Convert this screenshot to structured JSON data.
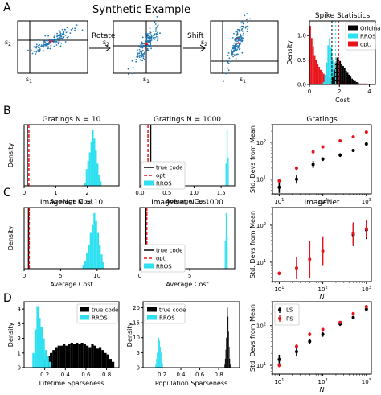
{
  "figure": {
    "title": "Synthetic Example",
    "panel_letters": [
      "A",
      "B",
      "C",
      "D"
    ],
    "scatter_arrows": [
      "Rotate",
      "Shift"
    ],
    "scatter_xlabel": "s",
    "scatter_ylabel": "s",
    "scatter_xsub": "1",
    "scatter_ysub": "2"
  },
  "colors": {
    "cyan": "#2ee0f0",
    "red": "#e8141c",
    "black": "#000000",
    "blue_points": "#1f77b4"
  },
  "chart_data": [
    {
      "id": "spike",
      "type": "bar",
      "title": "Spike Statistics",
      "xlabel": "Cost",
      "ylabel": "Density",
      "xlim": [
        0,
        4.4
      ],
      "ylim": [
        0,
        1.3
      ],
      "xticks": [
        0,
        2,
        4
      ],
      "yticks": [
        0.0,
        0.5,
        1.0
      ],
      "legend": [
        "Original",
        "RROS",
        "opt."
      ],
      "legend_position": "top-right",
      "vlines": [
        1.5,
        1.75,
        1.95
      ],
      "series": [
        {
          "name": "opt.",
          "bin_start": 0,
          "bin_width": 0.1,
          "values": [
            1.2,
            0.95,
            0.78,
            0.6,
            0.5,
            0.42,
            0.36,
            0.3,
            0.26,
            0.22,
            0.19,
            0.17,
            0.15,
            0.13,
            0.12,
            0.11,
            0.1,
            0.09,
            0.08,
            0.08,
            0.07,
            0.06,
            0.06,
            0.05,
            0.05,
            0.04,
            0.04,
            0.04,
            0.03,
            0.03,
            0.03,
            0.03,
            0.02,
            0.02,
            0.02,
            0.02,
            0.02,
            0.02,
            0.01,
            0.01
          ]
        },
        {
          "name": "RROS",
          "bin_start": 0.9,
          "bin_width": 0.1,
          "values": [
            0.05,
            0.2,
            0.45,
            0.8,
            0.95,
            0.75,
            0.5,
            0.3,
            0.15,
            0.06
          ]
        },
        {
          "name": "Original",
          "bin_start": 1.5,
          "bin_width": 0.1,
          "values": [
            0.15,
            0.3,
            0.45,
            0.55,
            0.5,
            0.48,
            0.42,
            0.38,
            0.33,
            0.28,
            0.24,
            0.2,
            0.16,
            0.12,
            0.09,
            0.07,
            0.05,
            0.04
          ]
        }
      ]
    },
    {
      "id": "b1",
      "type": "bar",
      "title": "Gratings N = 10",
      "xlabel": "Average Cost",
      "ylabel": "Density",
      "xlim": [
        0,
        3
      ],
      "xticks": [
        0,
        1,
        2
      ],
      "vlines": [
        {
          "x": 0.15,
          "style": "dashed",
          "color": "red"
        },
        {
          "x": 0.1,
          "style": "solid",
          "color": "black"
        }
      ],
      "histogram": {
        "bin_start": 1.9,
        "bin_width": 0.05,
        "values": [
          0.05,
          0.3,
          0.45,
          0.6,
          0.8,
          1.0,
          0.85,
          0.65,
          0.4,
          0.2,
          0.08
        ]
      }
    },
    {
      "id": "b2",
      "type": "bar",
      "title": "Gratings N = 1000",
      "xlabel": "Average Cost",
      "xlim": [
        0,
        1.75
      ],
      "xticks": [
        0.0,
        0.5,
        1.0,
        1.5
      ],
      "legend": [
        "true code",
        "opt.",
        "RROS"
      ],
      "legend_position": "lower-left",
      "vlines": [
        {
          "x": 0.2,
          "style": "solid",
          "color": "black"
        },
        {
          "x": 0.15,
          "style": "dashed",
          "color": "red"
        }
      ],
      "histogram": {
        "bin_start": 1.58,
        "bin_width": 0.02,
        "values": [
          0.4,
          1.0,
          0.5
        ]
      }
    },
    {
      "id": "b3",
      "type": "scatter",
      "title": "Gratings",
      "ylabel": "Std. Devs from Mean",
      "xscale": "log",
      "yscale": "log",
      "xlim": [
        7,
        1300
      ],
      "ylim": [
        4,
        300
      ],
      "xticks": [
        10,
        100,
        1000
      ],
      "yticks": [
        10,
        100
      ],
      "series": [
        {
          "name": "LS",
          "color": "black",
          "x": [
            10,
            25,
            60,
            100,
            250,
            500,
            1000
          ],
          "y": [
            6,
            10,
            25,
            35,
            45,
            60,
            90
          ],
          "err": [
            0.15,
            0.12,
            0.1,
            0.05,
            0.05,
            0.04,
            0.04
          ]
        },
        {
          "name": "PS",
          "color": "red",
          "x": [
            10,
            25,
            60,
            100,
            250,
            500,
            1000
          ],
          "y": [
            9,
            20,
            55,
            75,
            110,
            140,
            190
          ],
          "err": [
            0.05,
            0.05,
            0.04,
            0.04,
            0.03,
            0.03,
            0.03
          ]
        }
      ]
    },
    {
      "id": "c1",
      "type": "bar",
      "title": "ImageNet N = 10",
      "xlabel": "Average Cost",
      "ylabel": "Density",
      "xlim": [
        0,
        13
      ],
      "xticks": [
        0,
        5,
        10
      ],
      "vlines": [
        {
          "x": 0.6,
          "style": "solid",
          "color": "black"
        },
        {
          "x": 0.7,
          "style": "dashed",
          "color": "red"
        }
      ],
      "histogram": {
        "bin_start": 8.0,
        "bin_width": 0.25,
        "values": [
          0.05,
          0.1,
          0.2,
          0.3,
          0.45,
          0.55,
          0.7,
          0.6,
          0.45,
          0.3,
          0.18,
          0.08
        ]
      }
    },
    {
      "id": "c2",
      "type": "bar",
      "title": "ImageNet N = 1000",
      "xlabel": "Average Cost",
      "xlim": [
        0,
        9.5
      ],
      "xticks": [
        0,
        5
      ],
      "legend": [
        "true code",
        "opt.",
        "RROS"
      ],
      "legend_position": "lower-left",
      "vlines": [
        {
          "x": 0.6,
          "style": "solid",
          "color": "black"
        },
        {
          "x": 0.7,
          "style": "dashed",
          "color": "red"
        }
      ],
      "histogram": {
        "bin_start": 8.5,
        "bin_width": 0.1,
        "values": [
          0.5,
          1.0,
          0.6
        ]
      }
    },
    {
      "id": "c3",
      "type": "scatter",
      "title": "ImageNet",
      "ylabel": "Std. Devs from Mean",
      "xlabel": "N",
      "xscale": "log",
      "yscale": "log",
      "xlim": [
        7,
        1300
      ],
      "ylim": [
        3,
        300
      ],
      "xticks": [
        10,
        100,
        1000
      ],
      "yticks": [
        10,
        100
      ],
      "series": [
        {
          "name": "LS",
          "color": "black",
          "x": [
            500,
            1000
          ],
          "y": [
            55,
            75
          ],
          "err": [
            0.3,
            0.25
          ]
        },
        {
          "name": "PS",
          "color": "red",
          "x": [
            10,
            25,
            50,
            100,
            500,
            1000
          ],
          "y": [
            5,
            7,
            12,
            20,
            60,
            80
          ],
          "err": [
            0.05,
            0.3,
            0.5,
            0.4,
            0.3,
            0.25
          ]
        }
      ]
    },
    {
      "id": "d1",
      "type": "bar",
      "xlabel": "Lifetime Sparseness",
      "ylabel": "Density",
      "xlim": [
        0,
        0.92
      ],
      "ylim": [
        0,
        4.5
      ],
      "xticks": [
        0.2,
        0.4,
        0.6,
        0.8
      ],
      "yticks": [
        0,
        1,
        2,
        3,
        4
      ],
      "legend": [
        "true code",
        "RROS"
      ],
      "legend_position": "top-right",
      "series": [
        {
          "name": "true code",
          "bin_start": 0.2,
          "bin_width": 0.025,
          "values": [
            0.6,
            0.8,
            1.0,
            1.2,
            1.4,
            1.5,
            1.5,
            1.6,
            1.5,
            1.6,
            1.7,
            1.6,
            1.7,
            1.6,
            1.7,
            1.6,
            1.5,
            1.4,
            1.6,
            1.5,
            1.3,
            1.4,
            1.2,
            1.0,
            0.9,
            0.6,
            0.4
          ]
        },
        {
          "name": "RROS",
          "bin_start": 0.08,
          "bin_width": 0.02,
          "values": [
            1.0,
            2.6,
            4.2,
            3.4,
            2.8,
            2.0,
            1.2,
            0.8,
            0.4
          ]
        }
      ]
    },
    {
      "id": "d2",
      "type": "bar",
      "xlabel": "Population Sparseness",
      "ylabel": "Density",
      "xlim": [
        0,
        1.02
      ],
      "ylim": [
        0,
        22
      ],
      "xticks": [
        0.2,
        0.4,
        0.6,
        0.8
      ],
      "yticks": [
        0,
        5,
        10,
        15,
        20
      ],
      "legend": [
        "true code",
        "RROS"
      ],
      "legend_position": "top-left",
      "series": [
        {
          "name": "true code",
          "bin_start": 0.86,
          "bin_width": 0.006,
          "values": [
            1,
            3,
            6,
            10,
            15,
            20,
            17,
            12,
            7,
            3,
            1
          ]
        },
        {
          "name": "RROS",
          "bin_start": 0.13,
          "bin_width": 0.008,
          "values": [
            1,
            3,
            5,
            8,
            10,
            9,
            7,
            5,
            3,
            1.5
          ]
        }
      ]
    },
    {
      "id": "d3",
      "type": "scatter",
      "ylabel": "Std. Devs from Mean",
      "xlabel": "N",
      "xscale": "log",
      "yscale": "log",
      "xlim": [
        7,
        1300
      ],
      "ylim": [
        6,
        400
      ],
      "xticks": [
        10,
        100,
        1000
      ],
      "yticks": [
        10,
        100
      ],
      "legend": [
        "LS",
        "PS"
      ],
      "legend_position": "top-left",
      "series": [
        {
          "name": "LS",
          "color": "black",
          "x": [
            10,
            25,
            50,
            100,
            250,
            500,
            1000
          ],
          "y": [
            14,
            22,
            40,
            60,
            110,
            160,
            260
          ],
          "err": [
            0.12,
            0.1,
            0.07,
            0.06,
            0.05,
            0.04,
            0.04
          ]
        },
        {
          "name": "PS",
          "color": "red",
          "x": [
            10,
            25,
            50,
            100,
            250,
            500,
            1000
          ],
          "y": [
            10,
            30,
            60,
            80,
            120,
            200,
            300
          ],
          "err": [
            0.05,
            0.05,
            0.05,
            0.04,
            0.04,
            0.04,
            0.04
          ]
        }
      ]
    }
  ]
}
